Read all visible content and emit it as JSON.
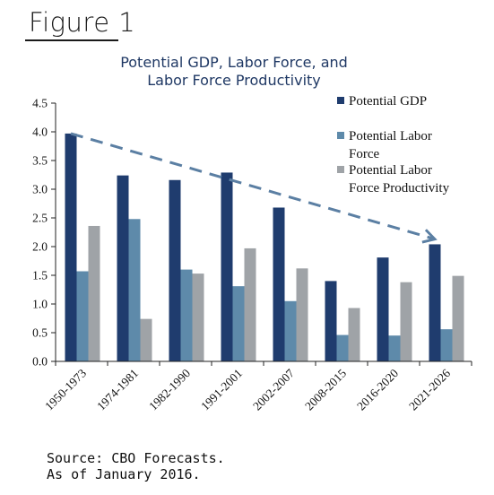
{
  "figure_label": "Figure 1",
  "source_line1": "Source: CBO Forecasts.",
  "source_line2": "As of January 2016.",
  "colors": {
    "gdp": "#1f3c6e",
    "labor": "#5e8aaa",
    "productivity": "#9fa3a7",
    "trend_arrow": "#5b7fa3"
  },
  "chart_data": {
    "type": "bar",
    "title_line1": "Potential GDP, Labor Force, and",
    "title_line2": "Labor Force Productivity",
    "categories": [
      "1950-1973",
      "1974-1981",
      "1982-1990",
      "1991-2001",
      "2002-2007",
      "2008-2015",
      "2016-2020",
      "2021-2026"
    ],
    "series": [
      {
        "name": "Potential GDP",
        "values": [
          3.97,
          3.24,
          3.16,
          3.29,
          2.68,
          1.4,
          1.81,
          2.04
        ]
      },
      {
        "name": "Potential Labor Force",
        "values": [
          1.57,
          2.48,
          1.6,
          1.31,
          1.05,
          0.46,
          0.45,
          0.56
        ]
      },
      {
        "name": "Potential Labor Force Productivity",
        "values": [
          2.36,
          0.74,
          1.53,
          1.97,
          1.62,
          0.93,
          1.38,
          1.49
        ]
      }
    ],
    "legend": [
      {
        "lines": [
          "Potential GDP"
        ]
      },
      {
        "lines": [
          "Potential Labor",
          "Force"
        ]
      },
      {
        "lines": [
          "Potential Labor",
          "Force Productivity"
        ]
      }
    ],
    "ylim": [
      0,
      4.5
    ],
    "yticks": [
      "0.0",
      "0.5",
      "1.0",
      "1.5",
      "2.0",
      "2.5",
      "3.0",
      "3.5",
      "4.0",
      "4.5"
    ],
    "trend_arrow": {
      "from_category": "1950-1973",
      "from_value": 3.97,
      "to_category": "2021-2026",
      "to_value": 2.13
    },
    "legend_position": "top-right",
    "grid": false
  }
}
